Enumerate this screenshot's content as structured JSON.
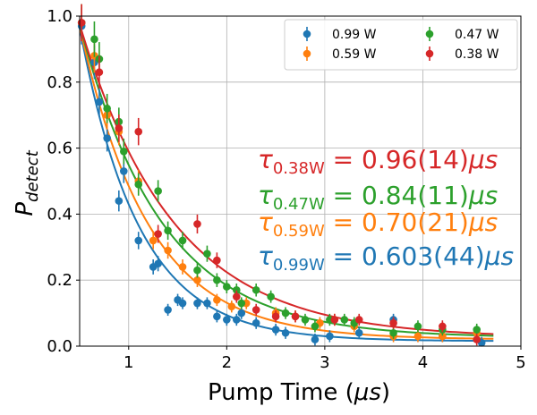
{
  "chart_data": {
    "type": "scatter",
    "xlabel_text": "Pump Time (",
    "xlabel_unit": "μs",
    "xlabel_close": ")",
    "ylabel_main": "P",
    "ylabel_sub": "detect",
    "xlim": [
      0.5,
      5.0
    ],
    "ylim": [
      0.0,
      1.0
    ],
    "xticks": [
      1,
      2,
      3,
      4,
      5
    ],
    "yticks": [
      0.0,
      0.2,
      0.4,
      0.6,
      0.8,
      1.0
    ],
    "xtick_labels": [
      "1",
      "2",
      "3",
      "4",
      "5"
    ],
    "ytick_labels": [
      "0.0",
      "0.2",
      "0.4",
      "0.6",
      "0.8",
      "1.0"
    ],
    "grid": true,
    "legend_position": "upper-right",
    "series": [
      {
        "name": "0.99 W",
        "color": "#1f77b4",
        "tau_label": "τ",
        "tau_sub": "0.99W",
        "tau_value": " = 0.603(44)",
        "tau_unit": "μs",
        "points": [
          [
            0.52,
            0.97
          ],
          [
            0.65,
            0.86
          ],
          [
            0.7,
            0.74
          ],
          [
            0.78,
            0.63
          ],
          [
            0.9,
            0.44
          ],
          [
            0.95,
            0.53
          ],
          [
            1.1,
            0.32
          ],
          [
            1.25,
            0.24
          ],
          [
            1.3,
            0.25
          ],
          [
            1.4,
            0.11
          ],
          [
            1.5,
            0.14
          ],
          [
            1.55,
            0.13
          ],
          [
            1.7,
            0.13
          ],
          [
            1.8,
            0.13
          ],
          [
            1.9,
            0.09
          ],
          [
            2.0,
            0.08
          ],
          [
            2.1,
            0.08
          ],
          [
            2.15,
            0.1
          ],
          [
            2.3,
            0.07
          ],
          [
            2.5,
            0.05
          ],
          [
            2.6,
            0.04
          ],
          [
            2.9,
            0.02
          ],
          [
            3.05,
            0.03
          ],
          [
            3.35,
            0.04
          ],
          [
            3.7,
            0.08
          ],
          [
            4.2,
            0.03
          ],
          [
            4.6,
            0.01
          ]
        ],
        "fit": {
          "amplitude": 0.95,
          "tau": 0.603,
          "offset": 0.015
        }
      },
      {
        "name": "0.59 W",
        "color": "#ff7f0e",
        "tau_label": "τ",
        "tau_sub": "0.59W",
        "tau_value": " = 0.70(21)",
        "tau_unit": "μs",
        "points": [
          [
            0.52,
            0.98
          ],
          [
            0.65,
            0.88
          ],
          [
            0.78,
            0.7
          ],
          [
            0.9,
            0.65
          ],
          [
            1.1,
            0.5
          ],
          [
            1.25,
            0.32
          ],
          [
            1.4,
            0.29
          ],
          [
            1.55,
            0.24
          ],
          [
            1.7,
            0.2
          ],
          [
            1.9,
            0.14
          ],
          [
            2.05,
            0.12
          ],
          [
            2.2,
            0.13
          ],
          [
            2.5,
            0.1
          ],
          [
            2.7,
            0.09
          ],
          [
            2.95,
            0.07
          ],
          [
            3.1,
            0.08
          ],
          [
            3.3,
            0.06
          ],
          [
            3.7,
            0.03
          ],
          [
            3.95,
            0.03
          ],
          [
            4.2,
            0.03
          ],
          [
            4.55,
            0.04
          ]
        ],
        "fit": {
          "amplitude": 0.95,
          "tau": 0.7,
          "offset": 0.02
        }
      },
      {
        "name": "0.47 W",
        "color": "#2ca02c",
        "tau_label": "τ",
        "tau_sub": "0.47W",
        "tau_value": " = 0.84(11)",
        "tau_unit": "μs",
        "points": [
          [
            0.52,
            0.98
          ],
          [
            0.65,
            0.93
          ],
          [
            0.7,
            0.87
          ],
          [
            0.78,
            0.72
          ],
          [
            0.9,
            0.68
          ],
          [
            0.95,
            0.59
          ],
          [
            1.1,
            0.49
          ],
          [
            1.3,
            0.47
          ],
          [
            1.4,
            0.35
          ],
          [
            1.55,
            0.32
          ],
          [
            1.7,
            0.23
          ],
          [
            1.8,
            0.28
          ],
          [
            1.9,
            0.2
          ],
          [
            2.0,
            0.18
          ],
          [
            2.1,
            0.17
          ],
          [
            2.15,
            0.13
          ],
          [
            2.3,
            0.17
          ],
          [
            2.45,
            0.15
          ],
          [
            2.6,
            0.1
          ],
          [
            2.8,
            0.08
          ],
          [
            2.9,
            0.06
          ],
          [
            3.05,
            0.08
          ],
          [
            3.2,
            0.08
          ],
          [
            3.3,
            0.07
          ],
          [
            3.7,
            0.04
          ],
          [
            3.95,
            0.06
          ],
          [
            4.2,
            0.05
          ],
          [
            4.55,
            0.05
          ]
        ],
        "fit": {
          "amplitude": 0.95,
          "tau": 0.84,
          "offset": 0.025
        }
      },
      {
        "name": "0.38 W",
        "color": "#d62728",
        "tau_label": "τ",
        "tau_sub": "0.38W",
        "tau_value": " = 0.96(14)",
        "tau_unit": "μs",
        "points": [
          [
            0.52,
            0.98
          ],
          [
            0.7,
            0.83
          ],
          [
            0.9,
            0.66
          ],
          [
            1.1,
            0.65
          ],
          [
            1.3,
            0.34
          ],
          [
            1.7,
            0.37
          ],
          [
            1.9,
            0.26
          ],
          [
            2.1,
            0.15
          ],
          [
            2.3,
            0.11
          ],
          [
            2.5,
            0.09
          ],
          [
            2.7,
            0.09
          ],
          [
            3.1,
            0.08
          ],
          [
            3.35,
            0.08
          ],
          [
            3.7,
            0.07
          ],
          [
            4.2,
            0.06
          ],
          [
            4.55,
            0.02
          ]
        ],
        "fit": {
          "amplitude": 0.95,
          "tau": 0.96,
          "offset": 0.025
        }
      }
    ]
  }
}
